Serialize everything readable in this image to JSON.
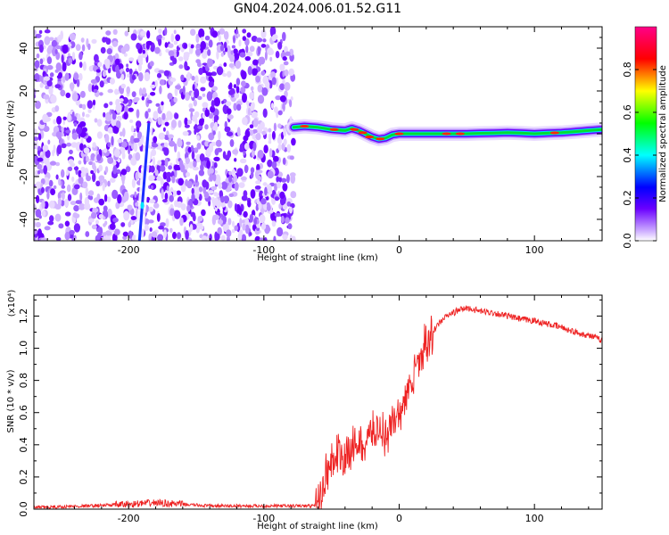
{
  "page_title": "GN04.2024.006.01.52.G11",
  "chart_data": [
    {
      "type": "heatmap",
      "xlabel": "Height of straight line (km)",
      "ylabel": "Frequency (Hz)",
      "xlim": [
        -270,
        150
      ],
      "ylim": [
        -50,
        50
      ],
      "xticks": [
        -200,
        -100,
        0,
        100
      ],
      "yticks": [
        -40,
        -20,
        0,
        20,
        40
      ],
      "colorbar": {
        "label": "Normalized spectral amplitude",
        "range": [
          0,
          1
        ],
        "ticks": [
          "0.0",
          "0.2",
          "0.4",
          "0.6",
          "0.8"
        ],
        "colors": [
          "#ffffff",
          "#6a00ff",
          "#0000ff",
          "#00ffff",
          "#00ff00",
          "#ffff00",
          "#ff0000",
          "#ff00aa"
        ]
      },
      "noise_region": {
        "x_start": -270,
        "x_end": -78,
        "freq_range": [
          -50,
          48
        ]
      },
      "oblique_streak": {
        "x": [
          -192,
          -185
        ],
        "freq": [
          -50,
          5
        ]
      },
      "signal_ridge": {
        "x": [
          -78,
          -70,
          -60,
          -50,
          -40,
          -35,
          -30,
          -25,
          -20,
          -15,
          -10,
          -5,
          0,
          10,
          20,
          30,
          40,
          50,
          60,
          70,
          80,
          90,
          100,
          110,
          120,
          130,
          140,
          150
        ],
        "freq": [
          3,
          3.5,
          3,
          2,
          1.5,
          2.5,
          1.5,
          0,
          -1.5,
          -2.5,
          -2,
          -0.5,
          0,
          0,
          0,
          0,
          0,
          0,
          0.2,
          0.3,
          0.5,
          0.3,
          0,
          0.3,
          0.5,
          1,
          1.5,
          2
        ]
      }
    },
    {
      "type": "line",
      "xlabel": "Height of straight line (km)",
      "ylabel": "SNR (10 * v/v)",
      "y_multiplier": "(x10⁴)",
      "xlim": [
        -270,
        150
      ],
      "ylim": [
        0,
        1.33
      ],
      "xticks": [
        -200,
        -100,
        0,
        100
      ],
      "yticks": [
        "0.0",
        "0.2",
        "0.4",
        "0.6",
        "0.8",
        "1.0",
        "1.2"
      ],
      "color": "#ee2222",
      "x": [
        -270,
        -250,
        -230,
        -200,
        -180,
        -160,
        -140,
        -120,
        -100,
        -80,
        -62,
        -58,
        -55,
        -50,
        -45,
        -40,
        -35,
        -30,
        -25,
        -20,
        -15,
        -10,
        -5,
        0,
        5,
        10,
        15,
        20,
        25,
        30,
        35,
        40,
        45,
        50,
        55,
        60,
        70,
        80,
        90,
        100,
        110,
        120,
        130,
        140,
        150
      ],
      "values": [
        0.01,
        0.015,
        0.02,
        0.03,
        0.04,
        0.03,
        0.02,
        0.02,
        0.02,
        0.02,
        0.02,
        0.1,
        0.2,
        0.3,
        0.35,
        0.3,
        0.38,
        0.42,
        0.4,
        0.48,
        0.5,
        0.46,
        0.52,
        0.6,
        0.68,
        0.8,
        0.92,
        1.05,
        1.1,
        1.16,
        1.2,
        1.22,
        1.24,
        1.25,
        1.24,
        1.23,
        1.22,
        1.2,
        1.18,
        1.17,
        1.15,
        1.13,
        1.1,
        1.08,
        1.05
      ]
    }
  ]
}
